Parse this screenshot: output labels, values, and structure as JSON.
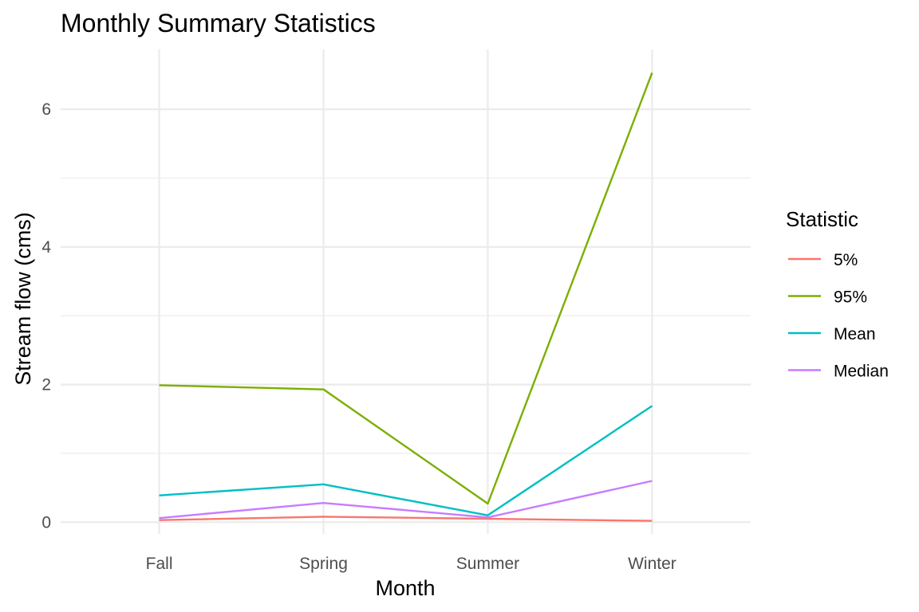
{
  "chart_data": {
    "type": "line",
    "title": "Monthly Summary Statistics",
    "xlabel": "Month",
    "ylabel": "Stream flow (cms)",
    "categories": [
      "Fall",
      "Spring",
      "Summer",
      "Winter"
    ],
    "ylim": [
      -0.17,
      6.87
    ],
    "y_major_ticks": [
      0,
      2,
      4,
      6
    ],
    "y_minor_ticks": [
      1,
      3,
      5
    ],
    "grid": true,
    "legend": {
      "title": "Statistic",
      "position": "right"
    },
    "series": [
      {
        "name": "5%",
        "color": "#f8766d",
        "values": [
          0.03,
          0.08,
          0.05,
          0.02
        ]
      },
      {
        "name": "95%",
        "color": "#7cae00",
        "values": [
          1.99,
          1.93,
          0.27,
          6.53
        ]
      },
      {
        "name": "Mean",
        "color": "#00bfc4",
        "values": [
          0.39,
          0.55,
          0.1,
          1.69
        ]
      },
      {
        "name": "Median",
        "color": "#c77cff",
        "values": [
          0.06,
          0.28,
          0.07,
          0.6
        ]
      }
    ]
  }
}
